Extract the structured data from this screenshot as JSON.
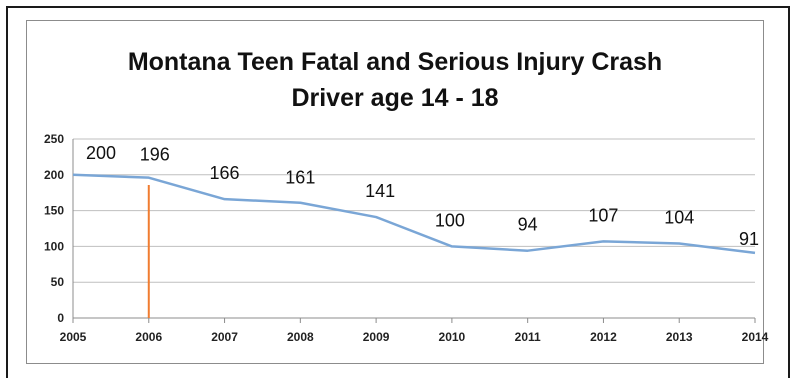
{
  "chart_data": {
    "type": "line",
    "title_line1": "Montana Teen Fatal and Serious Injury Crash",
    "title_line2": "Driver age 14 - 18",
    "x": [
      "2005",
      "2006",
      "2007",
      "2008",
      "2009",
      "2010",
      "2011",
      "2012",
      "2013",
      "2014"
    ],
    "series": [
      {
        "values": [
          200,
          196,
          166,
          161,
          141,
          100,
          94,
          107,
          104,
          91
        ],
        "color": "#7aa6d6"
      }
    ],
    "data_labels": [
      "200",
      "196",
      "166",
      "161",
      "141",
      "100",
      "94",
      "107",
      "104",
      "91"
    ],
    "y_ticks": [
      "0",
      "50",
      "100",
      "150",
      "200",
      "250"
    ],
    "ylim": [
      0,
      250
    ],
    "grid": "horizontal",
    "legend": "none",
    "marker_line": {
      "x": "2006",
      "color": "#f07c30"
    }
  }
}
